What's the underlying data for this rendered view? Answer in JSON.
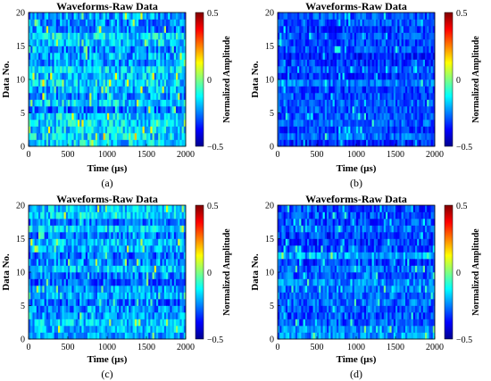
{
  "figure": {
    "colormap": "jet",
    "colors": {
      "jet_low": "#00008f",
      "jet_mid": "#10d8c8",
      "jet_high": "#800000"
    }
  },
  "chart_data": [
    {
      "type": "heatmap",
      "panel_label": "(a)",
      "title": "Waveforms-Raw Data",
      "xlabel": "Time (μs)",
      "ylabel": "Data No.",
      "xlim": [
        0,
        2000
      ],
      "ylim": [
        0,
        20
      ],
      "x_ticks": [
        "0",
        "500",
        "1000",
        "1500",
        "2000"
      ],
      "y_ticks": [
        "0",
        "5",
        "10",
        "15",
        "20"
      ],
      "colorbar": {
        "label": "Normalized Amplitude",
        "range": [
          -0.5,
          0.5
        ],
        "ticks": [
          "0.5",
          "0",
          "−0.5"
        ]
      },
      "rows": 20,
      "columns": 80,
      "typical_value": -0.2,
      "spread": 0.15,
      "grid": false
    },
    {
      "type": "heatmap",
      "panel_label": "(b)",
      "title": "Waveforms-Raw Data",
      "xlabel": "Time (μs)",
      "ylabel": "Data No.",
      "xlim": [
        0,
        2000
      ],
      "ylim": [
        0,
        20
      ],
      "x_ticks": [
        "0",
        "500",
        "1000",
        "1500",
        "2000"
      ],
      "y_ticks": [
        "0",
        "5",
        "10",
        "15",
        "20"
      ],
      "colorbar": {
        "label": "Normalized Amplitude",
        "range": [
          -0.5,
          0.5
        ],
        "ticks": [
          "0.5",
          "0",
          "−0.5"
        ]
      },
      "rows": 20,
      "columns": 80,
      "typical_value": -0.3,
      "spread": 0.1,
      "grid": false
    },
    {
      "type": "heatmap",
      "panel_label": "(c)",
      "title": "Waveforms-Raw Data",
      "xlabel": "Time (μs)",
      "ylabel": "Data No.",
      "xlim": [
        0,
        2000
      ],
      "ylim": [
        0,
        20
      ],
      "x_ticks": [
        "0",
        "500",
        "1000",
        "1500",
        "2000"
      ],
      "y_ticks": [
        "0",
        "5",
        "10",
        "15",
        "20"
      ],
      "colorbar": {
        "label": "Normalized Amplitude",
        "range": [
          -0.5,
          0.5
        ],
        "ticks": [
          "0.5",
          "0",
          "−0.5"
        ]
      },
      "rows": 20,
      "columns": 80,
      "typical_value": -0.22,
      "spread": 0.13,
      "grid": false
    },
    {
      "type": "heatmap",
      "panel_label": "(d)",
      "title": "Waveforms-Raw Data",
      "xlabel": "Time (μs)",
      "ylabel": "Data No.",
      "xlim": [
        0,
        2000
      ],
      "ylim": [
        0,
        20
      ],
      "x_ticks": [
        "0",
        "500",
        "1000",
        "1500",
        "2000"
      ],
      "y_ticks": [
        "0",
        "5",
        "10",
        "15",
        "20"
      ],
      "colorbar": {
        "label": "Normalized Amplitude",
        "range": [
          -0.5,
          0.5
        ],
        "ticks": [
          "0.5",
          "0",
          "−0.5"
        ]
      },
      "rows": 20,
      "columns": 80,
      "typical_value": -0.27,
      "spread": 0.11,
      "grid": false
    }
  ]
}
